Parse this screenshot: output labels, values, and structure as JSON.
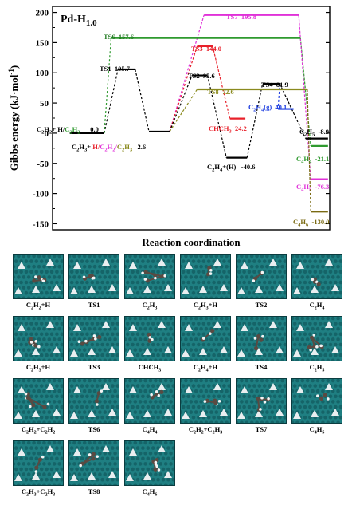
{
  "chart_data": {
    "type": "line",
    "panel_label": "Pd-H",
    "panel_label_sub": "1.0",
    "ylabel": "Gibbs energy (kJ·mol",
    "ylabel_sup": "-1",
    "ylabel_end": ")",
    "xlabel": "Reaction coordination",
    "ylim": [
      -160,
      210
    ],
    "yticks": [
      "-150",
      "-100",
      "-50",
      "0",
      "50",
      "100",
      "150",
      "200"
    ],
    "colors": {
      "black": "#000000",
      "green": "#2f9a2f",
      "red": "#e8202a",
      "olive": "#8a8a1e",
      "blue": "#2040e0",
      "magenta": "#e030d8",
      "darkgreen": "#207a20",
      "gold": "#7a6a12"
    },
    "levels": [
      {
        "key": "start",
        "x": [
          1,
          3
        ],
        "y": 0.0,
        "color": "black"
      },
      {
        "key": "ts1",
        "x": [
          3.8,
          4.8
        ],
        "y": 105.7,
        "color": "black"
      },
      {
        "key": "c2h3",
        "x": [
          5.6,
          6.8
        ],
        "y": 2.6,
        "color": "black"
      },
      {
        "key": "ts6",
        "x": [
          3.4,
          14.4
        ],
        "y": 157.6,
        "color": "green"
      },
      {
        "key": "ts7",
        "x": [
          8.8,
          14.3
        ],
        "y": 195.8,
        "color": "magenta"
      },
      {
        "key": "ts3",
        "x": [
          8.4,
          9.3
        ],
        "y": 144.0,
        "color": "red"
      },
      {
        "key": "chch3",
        "x": [
          10.3,
          11.2
        ],
        "y": 24.2,
        "color": "red"
      },
      {
        "key": "ts2",
        "x": [
          8.1,
          9.0
        ],
        "y": 95.6,
        "color": "black"
      },
      {
        "key": "ts8",
        "x": [
          8.4,
          14.8
        ],
        "y": 72.6,
        "color": "olive"
      },
      {
        "key": "c2h4h",
        "x": [
          10.1,
          11.3
        ],
        "y": -40.6,
        "color": "black"
      },
      {
        "key": "ts4",
        "x": [
          12.2,
          13.2
        ],
        "y": 81.9,
        "color": "black"
      },
      {
        "key": "c2h4g",
        "x": [
          13.1,
          14.0
        ],
        "y": 40.1,
        "color": "blue"
      },
      {
        "key": "c2h5",
        "x": [
          14.7,
          16.0
        ],
        "y": -8.9,
        "color": "black"
      },
      {
        "key": "c4h4",
        "x": [
          15.0,
          16.0
        ],
        "y": -21.1,
        "color": "green"
      },
      {
        "key": "c4h5",
        "x": [
          15.0,
          16.0
        ],
        "y": -76.3,
        "color": "magenta"
      },
      {
        "key": "c4h6",
        "x": [
          15.0,
          16.0
        ],
        "y": -130.0,
        "color": "gold"
      }
    ],
    "connectors": [
      {
        "x1": 3,
        "y1": 0,
        "x2": 3.8,
        "y2": 105.7,
        "color": "black"
      },
      {
        "x1": 4.8,
        "y1": 105.7,
        "x2": 5.6,
        "y2": 2.6,
        "color": "black"
      },
      {
        "x1": 3,
        "y1": 0,
        "x2": 3.4,
        "y2": 157.6,
        "color": "green"
      },
      {
        "x1": 14.4,
        "y1": 157.6,
        "x2": 15.0,
        "y2": -21.1,
        "color": "green"
      },
      {
        "x1": 6.8,
        "y1": 2.6,
        "x2": 8.8,
        "y2": 195.8,
        "color": "magenta"
      },
      {
        "x1": 14.3,
        "y1": 195.8,
        "x2": 15.0,
        "y2": -76.3,
        "color": "magenta"
      },
      {
        "x1": 6.8,
        "y1": 2.6,
        "x2": 8.4,
        "y2": 144.0,
        "color": "red"
      },
      {
        "x1": 9.3,
        "y1": 144.0,
        "x2": 10.3,
        "y2": 24.2,
        "color": "red"
      },
      {
        "x1": 6.8,
        "y1": 2.6,
        "x2": 8.1,
        "y2": 95.6,
        "color": "black"
      },
      {
        "x1": 9.0,
        "y1": 95.6,
        "x2": 10.1,
        "y2": -40.6,
        "color": "black"
      },
      {
        "x1": 6.8,
        "y1": 2.6,
        "x2": 8.4,
        "y2": 72.6,
        "color": "olive"
      },
      {
        "x1": 14.8,
        "y1": 72.6,
        "x2": 15.0,
        "y2": -130.0,
        "color": "gold"
      },
      {
        "x1": 11.3,
        "y1": -40.6,
        "x2": 12.2,
        "y2": 81.9,
        "color": "black"
      },
      {
        "x1": 13.2,
        "y1": 81.9,
        "x2": 13.1,
        "y2": 40.1,
        "color": "blue"
      },
      {
        "x1": 13.2,
        "y1": 81.9,
        "x2": 14.7,
        "y2": -8.9,
        "color": "black"
      }
    ],
    "labels": [
      {
        "key": "ts6",
        "segs": [
          {
            "t": "TS6  157.6"
          }
        ],
        "color": "darkgreen"
      },
      {
        "key": "ts7",
        "segs": [
          {
            "t": "TS7  195.8"
          }
        ],
        "color": "magenta"
      },
      {
        "key": "ts3",
        "segs": [
          {
            "t": "TS3  144.0"
          }
        ],
        "color": "red"
      },
      {
        "key": "ts1",
        "segs": [
          {
            "t": "TS1  105.7"
          }
        ],
        "color": "black"
      },
      {
        "key": "ts2",
        "segs": [
          {
            "t": "TS2  95.6"
          }
        ],
        "color": "black"
      },
      {
        "key": "ts8",
        "segs": [
          {
            "t": "TS8  72.6"
          }
        ],
        "color": "olive"
      },
      {
        "key": "ts4",
        "segs": [
          {
            "t": "TS4  81.9"
          }
        ],
        "color": "black"
      },
      {
        "key": "c2h4g",
        "segs": [
          {
            "t": "C"
          },
          {
            "t": "2",
            "sub": true
          },
          {
            "t": "H"
          },
          {
            "t": "4",
            "sub": true
          },
          {
            "t": "(g)  40.1"
          }
        ],
        "color": "blue"
      },
      {
        "key": "chch3",
        "segs": [
          {
            "t": "CHCH"
          },
          {
            "t": "3",
            "sub": true
          },
          {
            "t": "  24.2"
          }
        ],
        "color": "red"
      },
      {
        "key": "start",
        "segs": [
          {
            "t": "C"
          },
          {
            "t": "2",
            "sub": true
          },
          {
            "t": "H"
          },
          {
            "t": "2",
            "sub": true
          },
          {
            "t": "+ H/"
          },
          {
            "t": "C",
            "c": "green"
          },
          {
            "t": "2",
            "sub": true,
            "c": "green"
          },
          {
            "t": "H",
            "c": "green"
          },
          {
            "t": "2",
            "sub": true,
            "c": "green"
          },
          {
            "t": "      0.0"
          }
        ],
        "color": "black"
      },
      {
        "key": "c2h3",
        "segs": [
          {
            "t": "C"
          },
          {
            "t": "2",
            "sub": true
          },
          {
            "t": "H"
          },
          {
            "t": "3",
            "sub": true
          },
          {
            "t": "+ "
          },
          {
            "t": "H/",
            "c": "red"
          },
          {
            "t": "C",
            "c": "magenta"
          },
          {
            "t": "2",
            "sub": true,
            "c": "magenta"
          },
          {
            "t": "H",
            "c": "magenta"
          },
          {
            "t": "2",
            "sub": true,
            "c": "magenta"
          },
          {
            "t": "/",
            "c": "magenta"
          },
          {
            "t": "C",
            "c": "olive"
          },
          {
            "t": "2",
            "sub": true,
            "c": "olive"
          },
          {
            "t": "H",
            "c": "olive"
          },
          {
            "t": "3",
            "sub": true,
            "c": "olive"
          },
          {
            "t": "   2.6"
          }
        ],
        "color": "black"
      },
      {
        "key": "c2h4h",
        "segs": [
          {
            "t": "C"
          },
          {
            "t": "2",
            "sub": true
          },
          {
            "t": "H"
          },
          {
            "t": "4",
            "sub": true
          },
          {
            "t": "+(H)   -40.6"
          }
        ],
        "color": "black"
      },
      {
        "key": "c2h5",
        "segs": [
          {
            "t": "C"
          },
          {
            "t": "2",
            "sub": true
          },
          {
            "t": "H"
          },
          {
            "t": "5",
            "sub": true
          },
          {
            "t": "  -8.9"
          }
        ],
        "color": "black"
      },
      {
        "key": "c4h4",
        "segs": [
          {
            "t": "C"
          },
          {
            "t": "4",
            "sub": true
          },
          {
            "t": "H"
          },
          {
            "t": "4",
            "sub": true
          },
          {
            "t": "  -21.1"
          }
        ],
        "color": "green"
      },
      {
        "key": "c4h5",
        "segs": [
          {
            "t": "C"
          },
          {
            "t": "4",
            "sub": true
          },
          {
            "t": "H"
          },
          {
            "t": "5",
            "sub": true
          },
          {
            "t": "  -76.3"
          }
        ],
        "color": "magenta"
      },
      {
        "key": "c4h6",
        "segs": [
          {
            "t": "C"
          },
          {
            "t": "4",
            "sub": true
          },
          {
            "t": "H"
          },
          {
            "t": "6",
            "sub": true
          },
          {
            "t": "  -130.0"
          }
        ],
        "color": "gold"
      }
    ]
  },
  "panels": [
    {
      "caption": [
        {
          "t": "C"
        },
        {
          "t": "2",
          "sub": true
        },
        {
          "t": "H"
        },
        {
          "t": "2",
          "sub": true
        },
        {
          "t": "+H"
        }
      ]
    },
    {
      "caption": [
        {
          "t": "TS1"
        }
      ]
    },
    {
      "caption": [
        {
          "t": "C"
        },
        {
          "t": "2",
          "sub": true
        },
        {
          "t": "H"
        },
        {
          "t": "3",
          "sub": true
        }
      ]
    },
    {
      "caption": [
        {
          "t": "C"
        },
        {
          "t": "2",
          "sub": true
        },
        {
          "t": "H"
        },
        {
          "t": "3",
          "sub": true
        },
        {
          "t": "+H"
        }
      ]
    },
    {
      "caption": [
        {
          "t": "TS2"
        }
      ]
    },
    {
      "caption": [
        {
          "t": "C"
        },
        {
          "t": "2",
          "sub": true
        },
        {
          "t": "H"
        },
        {
          "t": "4",
          "sub": true
        }
      ]
    },
    {
      "caption": [
        {
          "t": "C"
        },
        {
          "t": "2",
          "sub": true
        },
        {
          "t": "H"
        },
        {
          "t": "3",
          "sub": true
        },
        {
          "t": "+H"
        }
      ]
    },
    {
      "caption": [
        {
          "t": "TS3"
        }
      ]
    },
    {
      "caption": [
        {
          "t": "CHCH"
        },
        {
          "t": "3",
          "sub": true
        }
      ]
    },
    {
      "caption": [
        {
          "t": "C"
        },
        {
          "t": "2",
          "sub": true
        },
        {
          "t": "H"
        },
        {
          "t": "4",
          "sub": true
        },
        {
          "t": "+H"
        }
      ]
    },
    {
      "caption": [
        {
          "t": "TS4"
        }
      ]
    },
    {
      "caption": [
        {
          "t": "C"
        },
        {
          "t": "2",
          "sub": true
        },
        {
          "t": "H"
        },
        {
          "t": "5",
          "sub": true
        }
      ]
    },
    {
      "caption": [
        {
          "t": "C"
        },
        {
          "t": "2",
          "sub": true
        },
        {
          "t": "H"
        },
        {
          "t": "2",
          "sub": true
        },
        {
          "t": "+C"
        },
        {
          "t": "2",
          "sub": true
        },
        {
          "t": "H"
        },
        {
          "t": "2",
          "sub": true
        }
      ]
    },
    {
      "caption": [
        {
          "t": "TS6"
        }
      ]
    },
    {
      "caption": [
        {
          "t": "C"
        },
        {
          "t": "4",
          "sub": true
        },
        {
          "t": "H"
        },
        {
          "t": "4",
          "sub": true
        }
      ]
    },
    {
      "caption": [
        {
          "t": "C"
        },
        {
          "t": "2",
          "sub": true
        },
        {
          "t": "H"
        },
        {
          "t": "2",
          "sub": true
        },
        {
          "t": "+C"
        },
        {
          "t": "2",
          "sub": true
        },
        {
          "t": "H"
        },
        {
          "t": "3",
          "sub": true
        }
      ]
    },
    {
      "caption": [
        {
          "t": "TS7"
        }
      ]
    },
    {
      "caption": [
        {
          "t": "C"
        },
        {
          "t": "4",
          "sub": true
        },
        {
          "t": "H"
        },
        {
          "t": "5",
          "sub": true
        }
      ]
    },
    {
      "caption": [
        {
          "t": "C"
        },
        {
          "t": "2",
          "sub": true
        },
        {
          "t": "H"
        },
        {
          "t": "3",
          "sub": true
        },
        {
          "t": "+C"
        },
        {
          "t": "2",
          "sub": true
        },
        {
          "t": "H"
        },
        {
          "t": "3",
          "sub": true
        }
      ]
    },
    {
      "caption": [
        {
          "t": "TS8"
        }
      ]
    },
    {
      "caption": [
        {
          "t": "C"
        },
        {
          "t": "4",
          "sub": true
        },
        {
          "t": "H"
        },
        {
          "t": "6",
          "sub": true
        }
      ]
    }
  ],
  "thumbnail_style": {
    "surface": "#1f7f82",
    "surface_dark": "#0d4f53",
    "vacancy": "#e9eef0",
    "carbon": "#5a4a42",
    "hydrogen": "#f4f4f4"
  }
}
